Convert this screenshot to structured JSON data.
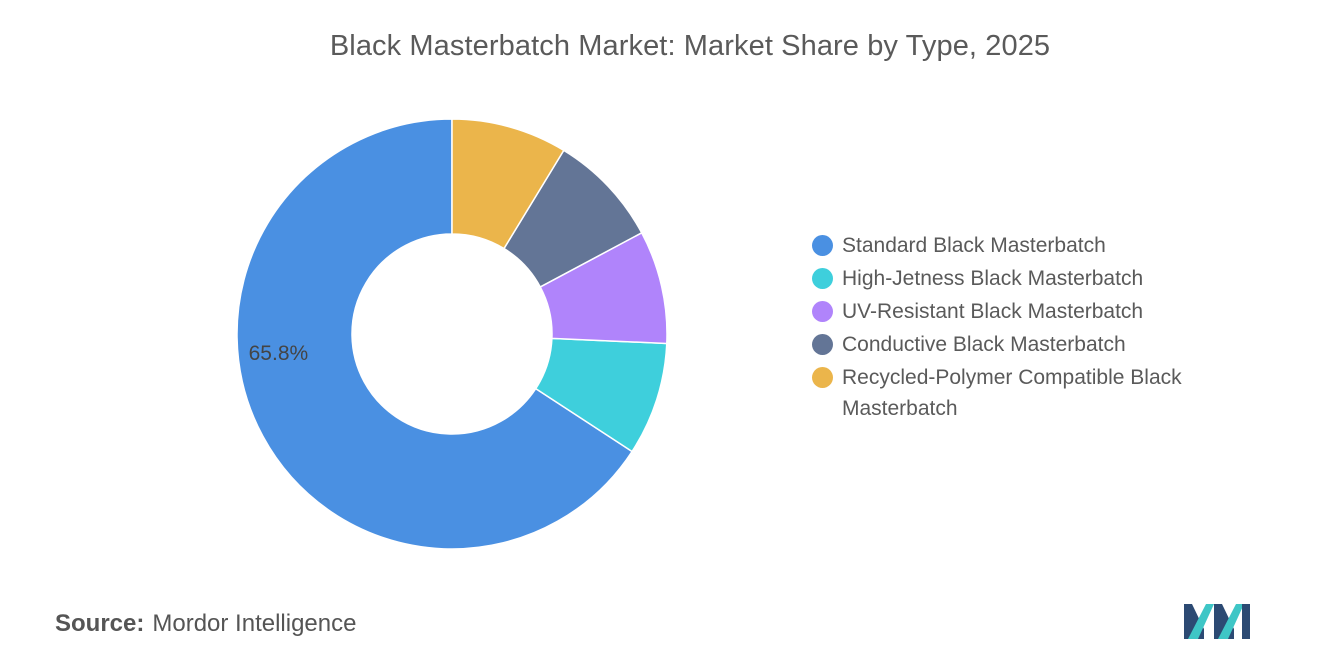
{
  "chart_data": {
    "type": "pie",
    "title": "Black Masterbatch Market: Market Share by Type, 2025",
    "categories": [
      "Standard Black Masterbatch",
      "High-Jetness Black Masterbatch",
      "UV-Resistant Black Masterbatch",
      "Conductive Black Masterbatch",
      "Recycled-Polymer Compatible Black Masterbatch"
    ],
    "values": [
      65.8,
      8.5,
      8.5,
      8.5,
      8.7
    ],
    "data_labels": [
      "65.8%",
      "",
      "",
      "",
      ""
    ],
    "colors": [
      "#4a90e2",
      "#3ecfdc",
      "#b084fb",
      "#637596",
      "#ebb54b"
    ],
    "legend_position": "right",
    "donut": true
  },
  "source": {
    "label": "Source:",
    "text": "Mordor Intelligence"
  },
  "logo": {
    "icon": "mordor-intelligence-logo-icon",
    "colors": [
      "#2c4a73",
      "#3ec6c6"
    ]
  }
}
